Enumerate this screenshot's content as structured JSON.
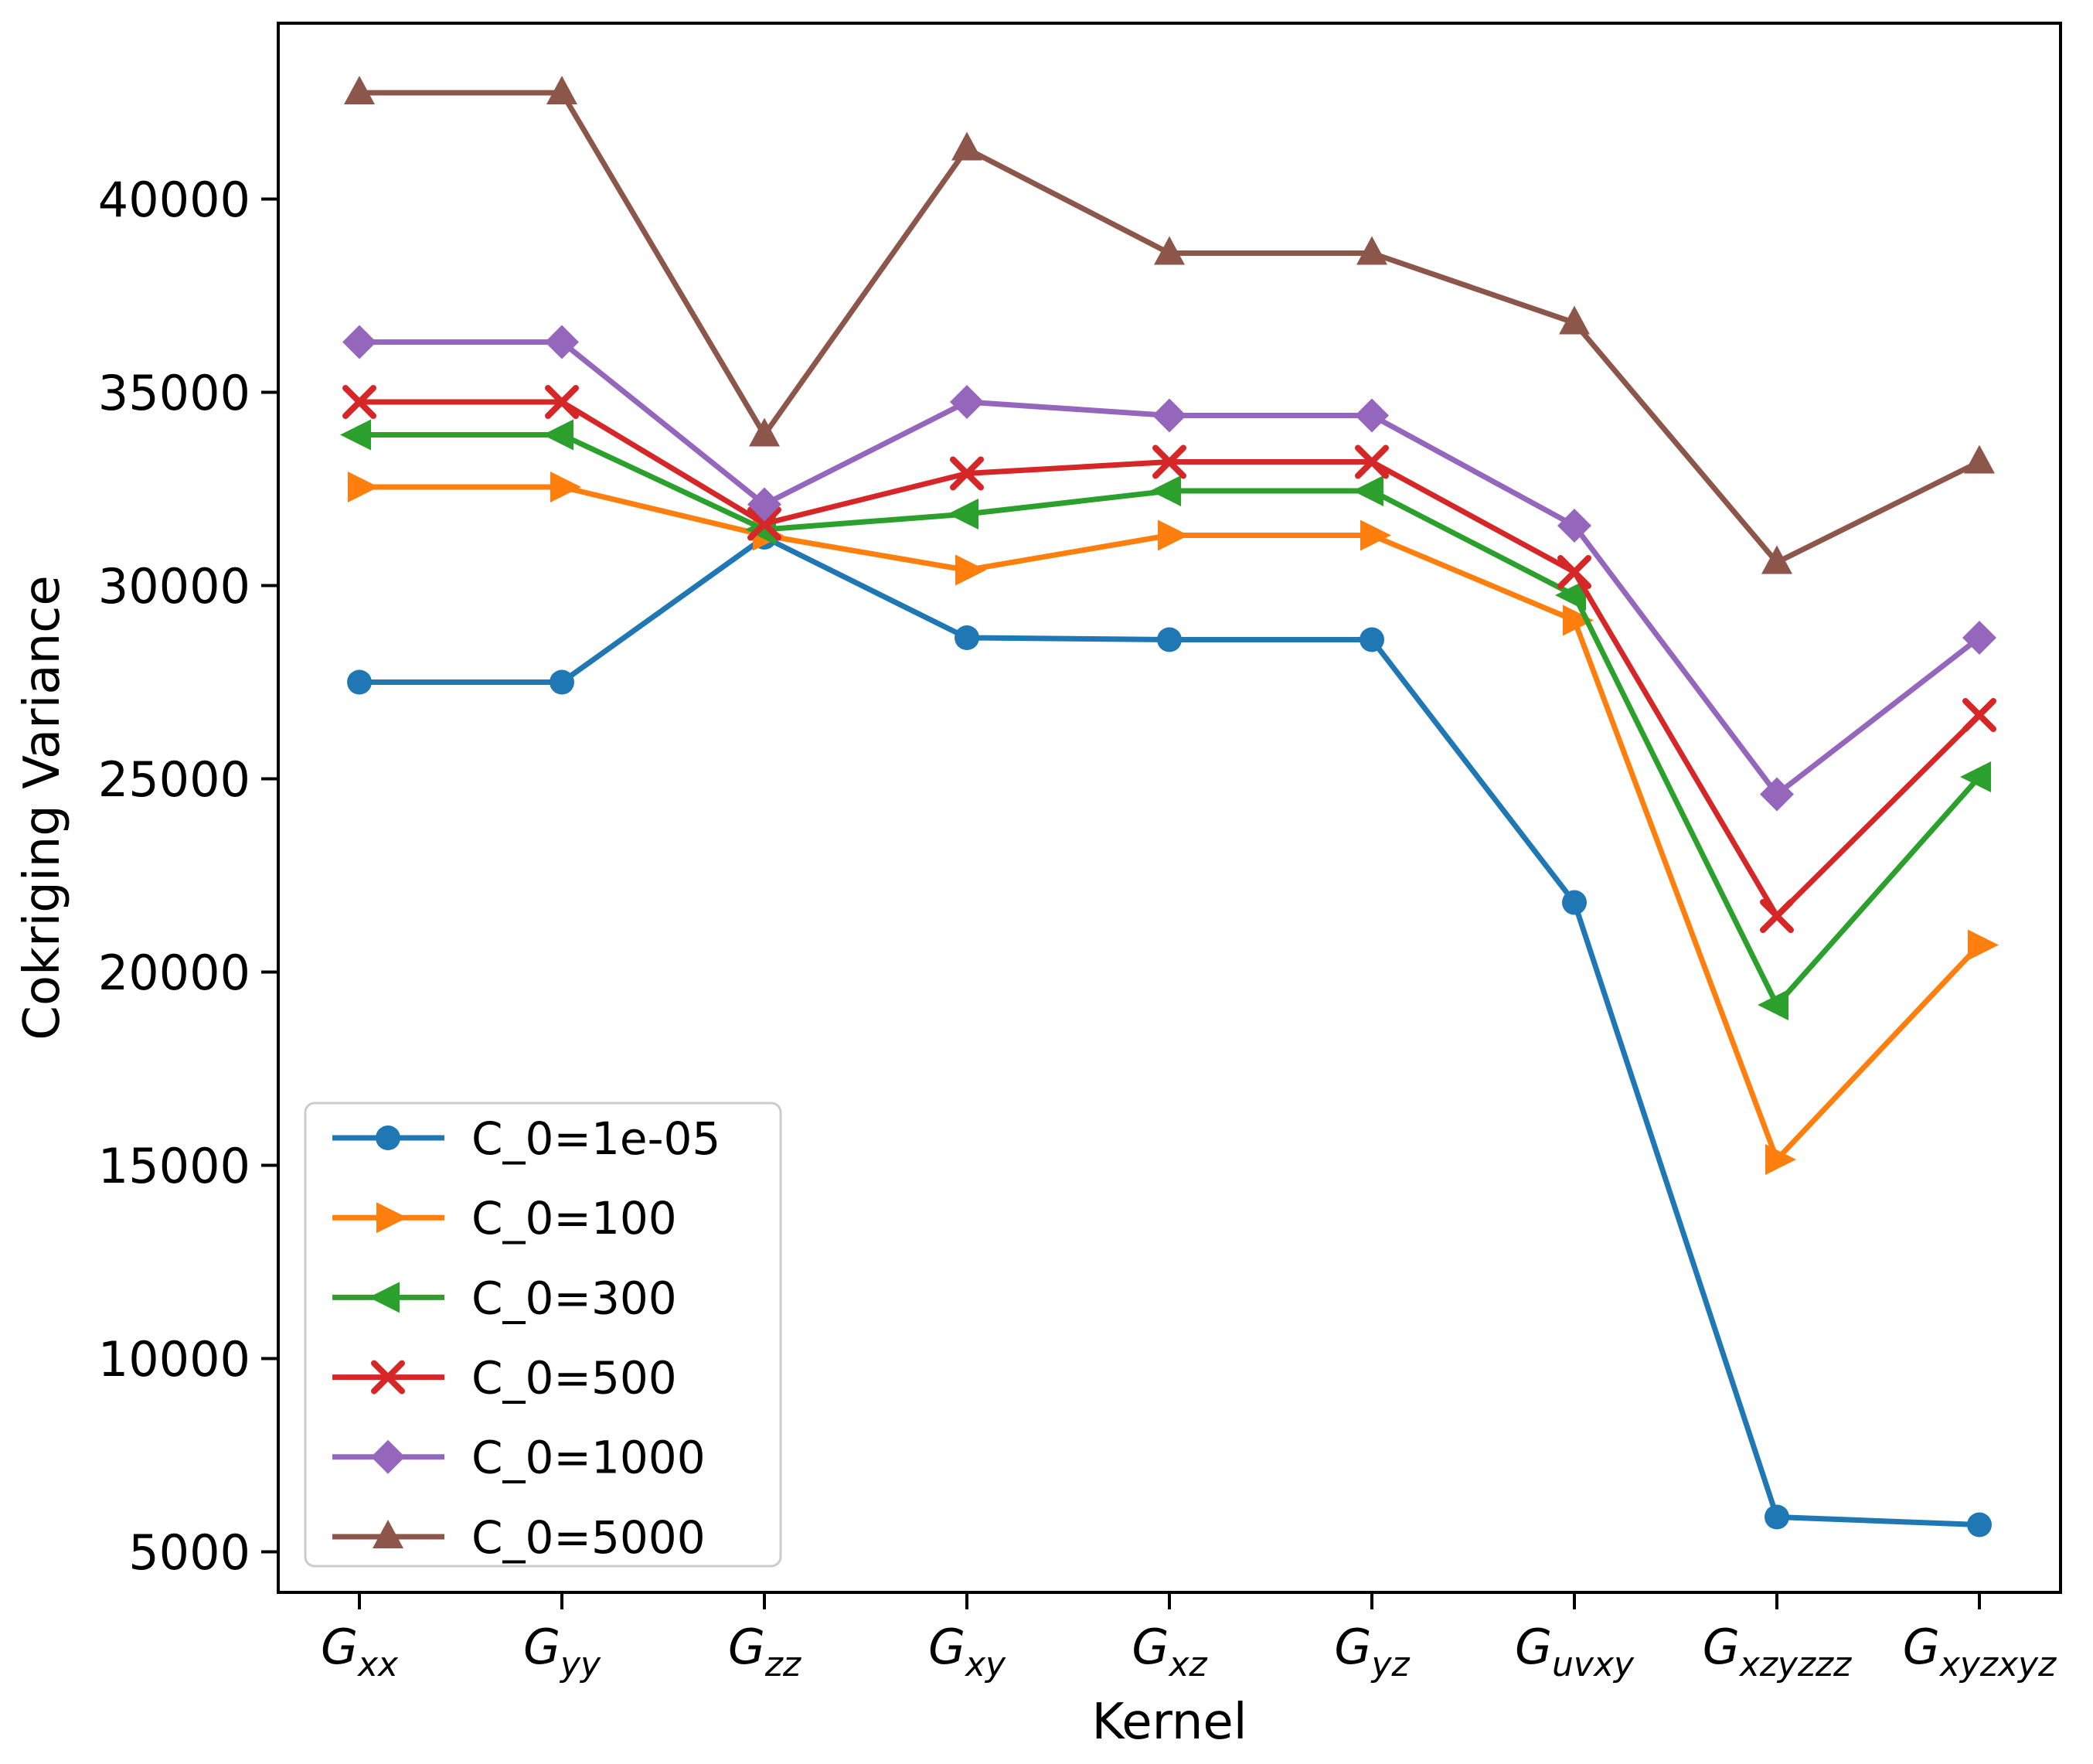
{
  "chart_data": {
    "type": "line",
    "title": "",
    "xlabel": "Kernel",
    "ylabel": "Cokriging Variance",
    "ylim": [
      3950,
      44550
    ],
    "yticks": [
      5000,
      10000,
      15000,
      20000,
      25000,
      30000,
      35000,
      40000
    ],
    "yticklabels": [
      "5000",
      "10000",
      "15000",
      "20000",
      "25000",
      "30000",
      "35000",
      "40000"
    ],
    "grid": false,
    "legend_position": "lower left",
    "categories": [
      "G_xx",
      "G_yy",
      "G_zz",
      "G_xy",
      "G_xz",
      "G_yz",
      "G_uvxy",
      "G_xzyzzz",
      "G_xyzxyz"
    ],
    "categories_rich": [
      {
        "base": "G",
        "sub": "xx"
      },
      {
        "base": "G",
        "sub": "yy"
      },
      {
        "base": "G",
        "sub": "zz"
      },
      {
        "base": "G",
        "sub": "xy"
      },
      {
        "base": "G",
        "sub": "xz"
      },
      {
        "base": "G",
        "sub": "yz"
      },
      {
        "base": "G",
        "sub": "uvxy"
      },
      {
        "base": "G",
        "sub": "xzyzzz"
      },
      {
        "base": "G",
        "sub": "xyzxyz"
      }
    ],
    "series": [
      {
        "name": "C_0=1e-05",
        "color": "#1f77b4",
        "marker": "circle",
        "values": [
          27500,
          27500,
          31250,
          28650,
          28600,
          28600,
          21800,
          5900,
          5700
        ]
      },
      {
        "name": "C_0=100",
        "color": "#ff7f0e",
        "marker": "triangle-right",
        "values": [
          32550,
          32550,
          31300,
          30400,
          31300,
          31300,
          29100,
          15150,
          20700
        ]
      },
      {
        "name": "C_0=300",
        "color": "#2ca02c",
        "marker": "triangle-left",
        "values": [
          33900,
          33900,
          31450,
          31850,
          32450,
          32450,
          29750,
          19150,
          25050
        ]
      },
      {
        "name": "C_0=500",
        "color": "#d62728",
        "marker": "x",
        "values": [
          34750,
          34750,
          31600,
          32900,
          33200,
          33200,
          30350,
          21450,
          26650
        ]
      },
      {
        "name": "C_0=1000",
        "color": "#9467bd",
        "marker": "diamond",
        "values": [
          36300,
          36300,
          32100,
          34750,
          34400,
          34400,
          31550,
          24600,
          28650
        ]
      },
      {
        "name": "C_0=5000",
        "color": "#8c564b",
        "marker": "triangle-up",
        "values": [
          42750,
          42750,
          33900,
          41300,
          38600,
          38600,
          36800,
          30600,
          33200
        ]
      }
    ],
    "axis_color": "#000000",
    "legend_border_color": "#cccccc",
    "legend_bg_color": "#ffffff"
  }
}
